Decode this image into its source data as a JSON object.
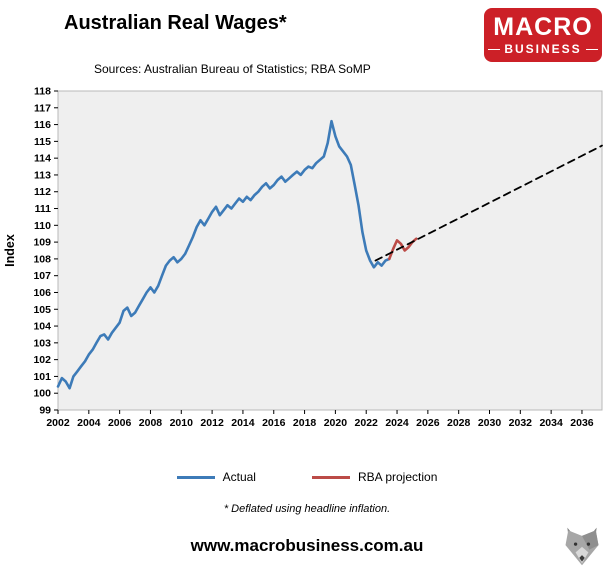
{
  "header": {
    "title": "Australian Real Wages*",
    "subtitle": "Sources: Australian Bureau of Statistics; RBA SoMP"
  },
  "logo": {
    "line1": "MACRO",
    "line2": "BUSINESS",
    "bg_color": "#cc2027"
  },
  "chart_data": {
    "type": "line",
    "title": "Australian Real Wages*",
    "xlabel": "",
    "ylabel": "Index",
    "ylim": [
      99,
      118
    ],
    "xlim": [
      2002,
      2037.3
    ],
    "plot_bg": "#efefef",
    "grid": false,
    "legend_position": "bottom",
    "x_ticks": [
      2002,
      2004,
      2006,
      2008,
      2010,
      2012,
      2014,
      2016,
      2018,
      2020,
      2022,
      2024,
      2026,
      2028,
      2030,
      2032,
      2034,
      2036
    ],
    "y_ticks": [
      99,
      100,
      101,
      102,
      103,
      104,
      105,
      106,
      107,
      108,
      109,
      110,
      111,
      112,
      113,
      114,
      115,
      116,
      117,
      118
    ],
    "series": [
      {
        "name": "Actual",
        "color": "#3d7bb8",
        "width": 2.6,
        "x_start": 2002,
        "x_step": 0.25,
        "values": [
          100.4,
          100.9,
          100.7,
          100.3,
          101.0,
          101.3,
          101.6,
          101.9,
          102.3,
          102.6,
          103.0,
          103.4,
          103.5,
          103.2,
          103.6,
          103.9,
          104.2,
          104.9,
          105.1,
          104.6,
          104.8,
          105.2,
          105.6,
          106.0,
          106.3,
          106.0,
          106.4,
          107.0,
          107.6,
          107.9,
          108.1,
          107.8,
          108.0,
          108.3,
          108.8,
          109.3,
          109.9,
          110.3,
          110.0,
          110.4,
          110.8,
          111.1,
          110.6,
          110.9,
          111.2,
          111.0,
          111.3,
          111.6,
          111.4,
          111.7,
          111.5,
          111.8,
          112.0,
          112.3,
          112.5,
          112.2,
          112.4,
          112.7,
          112.9,
          112.6,
          112.8,
          113.0,
          113.2,
          113.0,
          113.3,
          113.5,
          113.4,
          113.7,
          113.9,
          114.1,
          114.9,
          116.2,
          115.3,
          114.7,
          114.4,
          114.1,
          113.6,
          112.4,
          111.2,
          109.6,
          108.5,
          107.9,
          107.5,
          107.8,
          107.6,
          107.9,
          108.0
        ]
      },
      {
        "name": "RBA projection",
        "color": "#bc4b47",
        "width": 2.6,
        "x": [
          2023.5,
          2023.75,
          2024.0,
          2024.25,
          2024.5,
          2024.75,
          2025.0,
          2025.25
        ],
        "y": [
          108.0,
          108.6,
          109.1,
          108.9,
          108.5,
          108.7,
          109.0,
          109.2
        ]
      },
      {
        "name": "trend",
        "color": "#000000",
        "width": 1.8,
        "dash": "7 5",
        "in_legend": false,
        "x": [
          2022.6,
          2037.3
        ],
        "y": [
          107.9,
          114.75
        ]
      }
    ]
  },
  "footer": {
    "footnote": "* Deflated using headline inflation.",
    "website": "www.macrobusiness.com.au"
  }
}
